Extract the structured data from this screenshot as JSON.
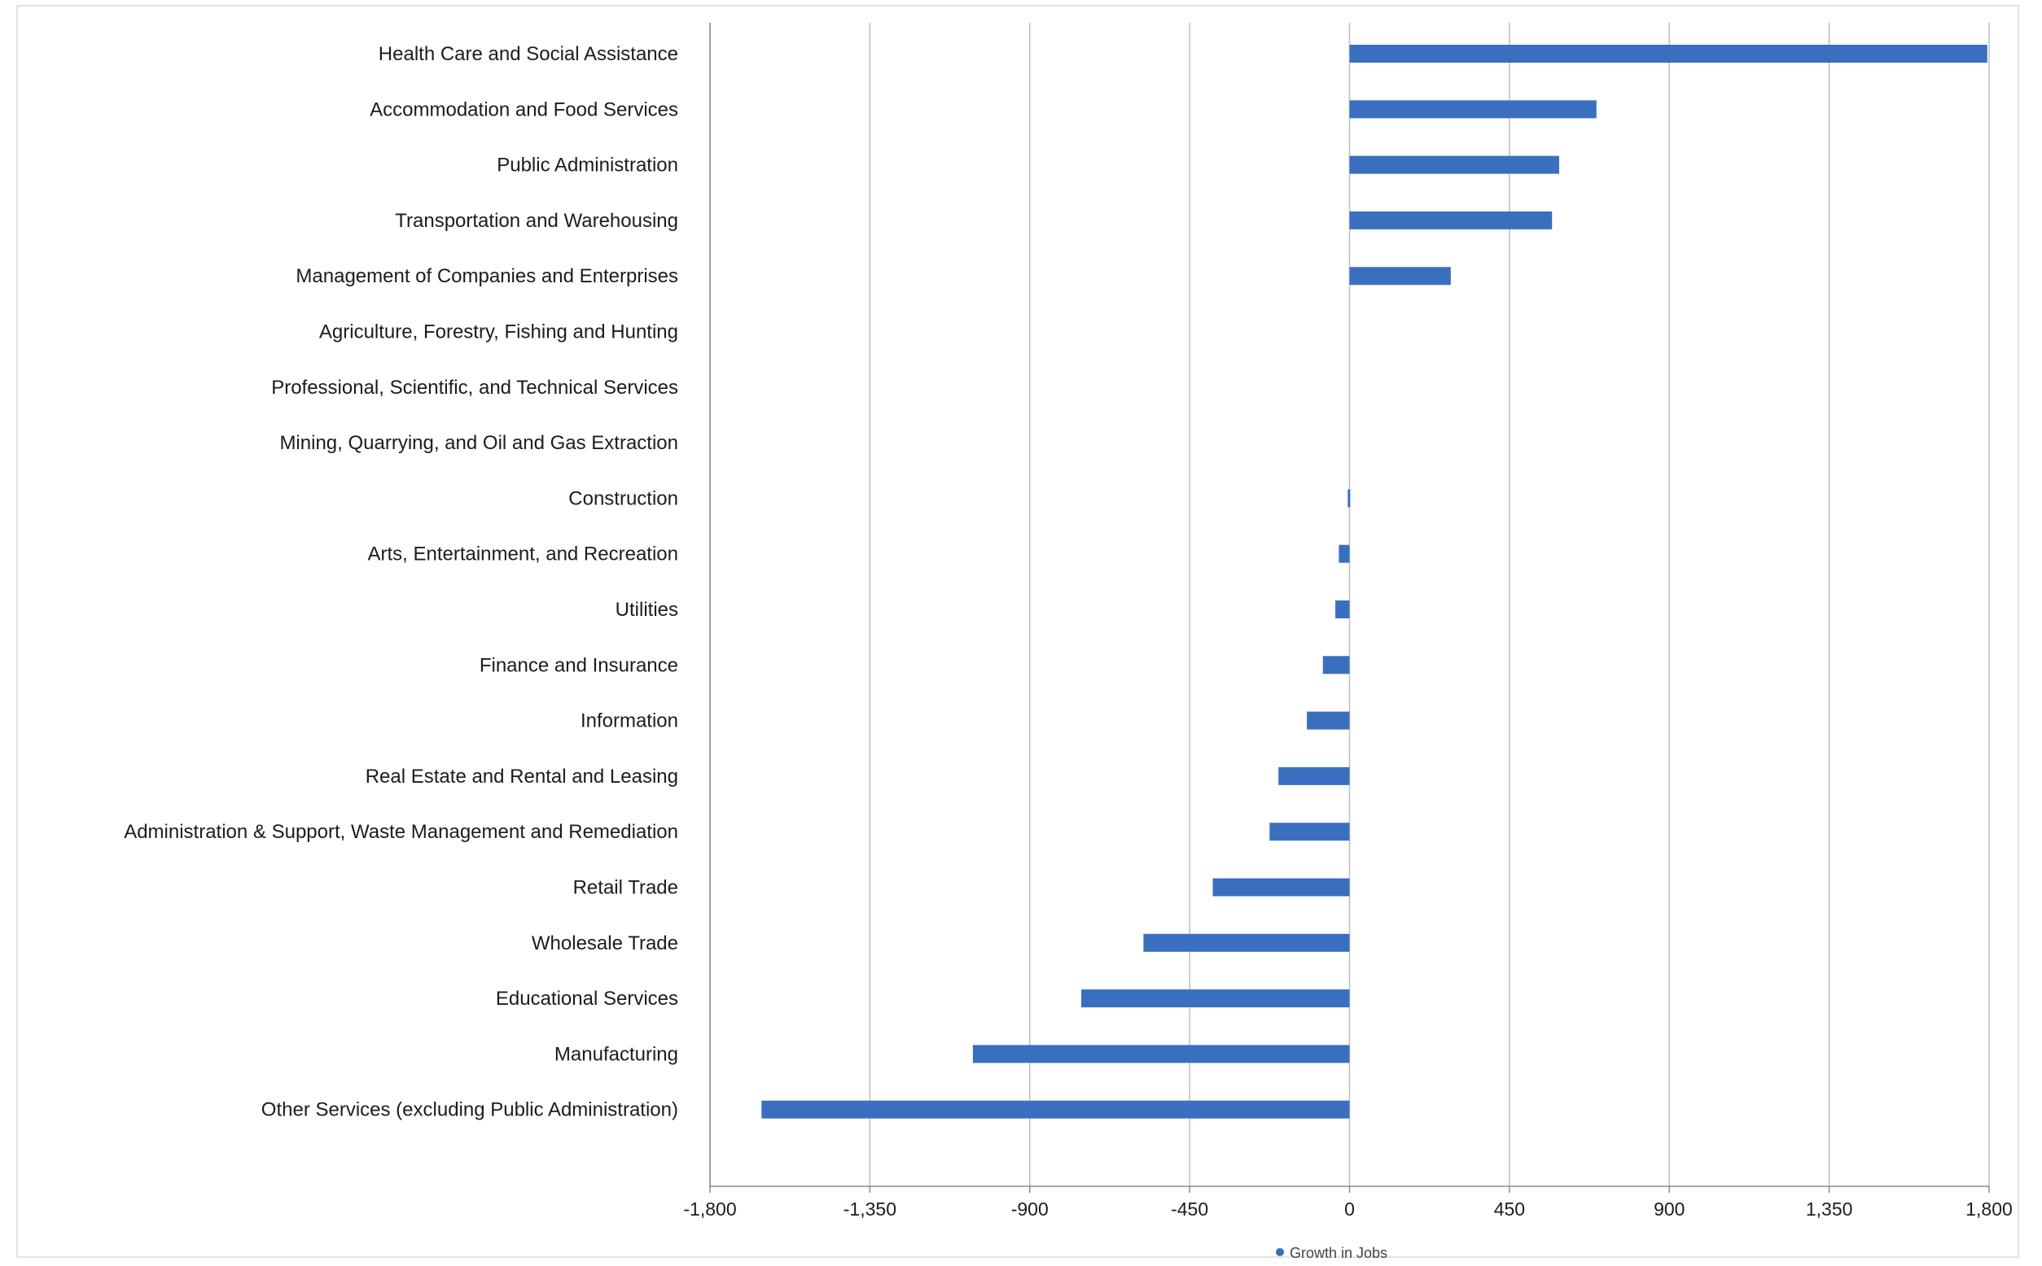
{
  "chart_data": {
    "type": "bar",
    "orientation": "horizontal",
    "categories": [
      "Health Care and Social Assistance",
      "Accommodation and Food Services",
      "Public Administration",
      "Transportation and Warehousing",
      "Management of Companies and Enterprises",
      "Agriculture, Forestry, Fishing and Hunting",
      "Professional, Scientific, and Technical Services",
      "Mining, Quarrying, and Oil and Gas Extraction",
      "Construction",
      "Arts, Entertainment, and Recreation",
      "Utilities",
      "Finance and Insurance",
      "Information",
      "Real Estate and Rental and Leasing",
      "Administration & Support, Waste Management and Remediation",
      "Retail Trade",
      "Wholesale Trade",
      "Educational Services",
      "Manufacturing",
      "Other Services (excluding Public Administration)"
    ],
    "series": [
      {
        "name": "Growth in Jobs",
        "color": "#3a6fc0",
        "values": [
          1795,
          695,
          590,
          570,
          285,
          0,
          0,
          0,
          -5,
          -30,
          -40,
          -75,
          -120,
          -200,
          -225,
          -385,
          -580,
          -755,
          -1060,
          -1655
        ]
      }
    ],
    "xticks": [
      "-1,800",
      "-1,350",
      "-900",
      "-450",
      "0",
      "450",
      "900",
      "1,350",
      "1,800"
    ],
    "xlim": [
      -1800,
      1800
    ],
    "grid": "vertical",
    "legend": "bottom-center",
    "title": "",
    "xlabel": "",
    "ylabel": ""
  }
}
